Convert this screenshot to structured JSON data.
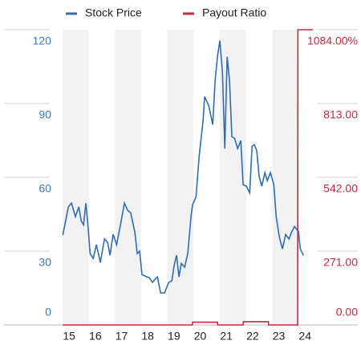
{
  "chart_data": {
    "type": "line",
    "legend": "top",
    "series": [
      {
        "name": "Stock Price",
        "color": "#2f6db5",
        "axis": "y",
        "x": [
          2014.76,
          2014.97,
          2015.09,
          2015.24,
          2015.37,
          2015.46,
          2015.55,
          2015.64,
          2015.73,
          2015.8,
          2015.92,
          2016.04,
          2016.19,
          2016.35,
          2016.47,
          2016.56,
          2016.68,
          2016.81,
          2016.96,
          2017.11,
          2017.23,
          2017.35,
          2017.51,
          2017.6,
          2017.69,
          2017.78,
          2017.97,
          2018.06,
          2018.18,
          2018.28,
          2018.37,
          2018.49,
          2018.64,
          2018.8,
          2018.92,
          2019.01,
          2019.1,
          2019.19,
          2019.28,
          2019.41,
          2019.53,
          2019.65,
          2019.71,
          2019.84,
          2019.96,
          2020.11,
          2020.17,
          2020.33,
          2020.48,
          2020.57,
          2020.66,
          2020.75,
          2020.85,
          2020.94,
          2021.03,
          2021.12,
          2021.21,
          2021.31,
          2021.43,
          2021.55,
          2021.64,
          2021.76,
          2021.89,
          2021.98,
          2022.07,
          2022.16,
          2022.25,
          2022.35,
          2022.47,
          2022.56,
          2022.68,
          2022.81,
          2022.9,
          2023.02,
          2023.14,
          2023.26,
          2023.39,
          2023.48,
          2023.6,
          2023.75,
          2023.82,
          2023.94
        ],
        "values": [
          36.5,
          48,
          49.5,
          44,
          48,
          42.3,
          40.7,
          49.5,
          39,
          29,
          27,
          32.6,
          25.4,
          35,
          33.5,
          28.3,
          36.8,
          32.6,
          40.7,
          49.5,
          46.6,
          45.6,
          37.5,
          29,
          30,
          20.5,
          19.5,
          19.2,
          17.3,
          18.6,
          19.5,
          13,
          13,
          17.3,
          17.9,
          24.4,
          28.3,
          19.5,
          25,
          23.5,
          29.3,
          44,
          48.9,
          52,
          68.4,
          83,
          92.8,
          89,
          81.4,
          99.3,
          109,
          115.6,
          102.6,
          71.7,
          109,
          99.3,
          76.5,
          75.9,
          71.7,
          74.9,
          57,
          56.4,
          53.7,
          72.6,
          73.3,
          70.7,
          60.3,
          56.4,
          61.9,
          58.6,
          61.9,
          57,
          44,
          35.8,
          30.9,
          36.8,
          34.9,
          37.5,
          40,
          38,
          30.9,
          28.3
        ]
      },
      {
        "name": "Payout Ratio",
        "color": "#c7283f",
        "axis": "y2",
        "x": [
          2014.76,
          2019.7,
          2019.71,
          2020.66,
          2020.67,
          2021.64,
          2021.65,
          2022.6,
          2022.61,
          2023.72,
          2023.73,
          2024.3
        ],
        "values": [
          0,
          0,
          10,
          10,
          0,
          0,
          12,
          12,
          0,
          0,
          1084,
          1084
        ]
      }
    ],
    "xlim": [
      2014.75,
      2024.3
    ],
    "xticks": [
      {
        "value": 2015,
        "label": "15"
      },
      {
        "value": 2016,
        "label": "16"
      },
      {
        "value": 2017,
        "label": "17"
      },
      {
        "value": 2018,
        "label": "18"
      },
      {
        "value": 2019,
        "label": "19"
      },
      {
        "value": 2020,
        "label": "20"
      },
      {
        "value": 2021,
        "label": "21"
      },
      {
        "value": 2022,
        "label": "22"
      },
      {
        "value": 2023,
        "label": "23"
      },
      {
        "value": 2024,
        "label": "24"
      }
    ],
    "ylim": [
      0,
      120
    ],
    "yticks": [
      0,
      30,
      60,
      90,
      120
    ],
    "y2lim": [
      0,
      1084
    ],
    "y2ticks": [
      {
        "value": 0,
        "label": "0.00"
      },
      {
        "value": 271,
        "label": "271.00"
      },
      {
        "value": 542,
        "label": "542.00"
      },
      {
        "value": 813,
        "label": "813.00"
      },
      {
        "value": 1084,
        "label": "1084.00%"
      }
    ],
    "band_color": "#f2f2f2"
  }
}
